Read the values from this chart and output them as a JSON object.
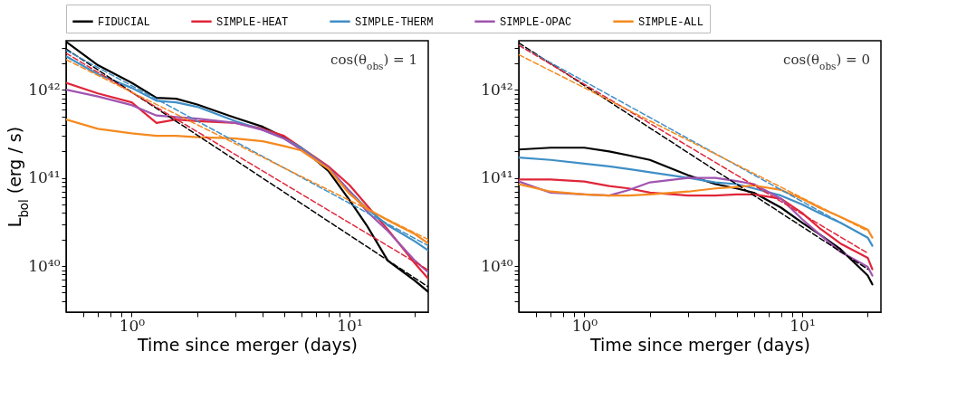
{
  "chart_data": [
    {
      "type": "line",
      "xlabel": "Time since merger (days)",
      "ylabel": "L$_{bol}$ (erg / s)",
      "annotations": [
        "cos(θ$_{obs}$) = 1"
      ],
      "log": "xy",
      "legend": "top",
      "grid": false,
      "xlim": [
        0.5,
        23
      ],
      "ylim": [
        3e+39,
        3.6e+42
      ],
      "xticks": [
        {
          "value": 0.6,
          "label": null
        },
        {
          "value": 0.7,
          "label": null
        },
        {
          "value": 0.8,
          "label": null
        },
        {
          "value": 0.9,
          "label": null
        },
        {
          "value": 1,
          "label": "10⁰"
        },
        {
          "value": 2,
          "label": null
        },
        {
          "value": 3,
          "label": null
        },
        {
          "value": 4,
          "label": null
        },
        {
          "value": 5,
          "label": null
        },
        {
          "value": 6,
          "label": null
        },
        {
          "value": 7,
          "label": null
        },
        {
          "value": 8,
          "label": null
        },
        {
          "value": 9,
          "label": null
        },
        {
          "value": 10,
          "label": "10¹"
        },
        {
          "value": 20,
          "label": null
        }
      ],
      "yticks": [
        {
          "value": 4e+39,
          "label": null
        },
        {
          "value": 5e+39,
          "label": null
        },
        {
          "value": 6e+39,
          "label": null
        },
        {
          "value": 7e+39,
          "label": null
        },
        {
          "value": 8e+39,
          "label": null
        },
        {
          "value": 9e+39,
          "label": null
        },
        {
          "value": 1e+40,
          "label": "10⁴⁰"
        },
        {
          "value": 2e+40,
          "label": null
        },
        {
          "value": 3e+40,
          "label": null
        },
        {
          "value": 4e+40,
          "label": null
        },
        {
          "value": 5e+40,
          "label": null
        },
        {
          "value": 6e+40,
          "label": null
        },
        {
          "value": 7e+40,
          "label": null
        },
        {
          "value": 8e+40,
          "label": null
        },
        {
          "value": 9e+40,
          "label": null
        },
        {
          "value": 1e+41,
          "label": "10⁴¹"
        },
        {
          "value": 2e+41,
          "label": null
        },
        {
          "value": 3e+41,
          "label": null
        },
        {
          "value": 4e+41,
          "label": null
        },
        {
          "value": 5e+41,
          "label": null
        },
        {
          "value": 6e+41,
          "label": null
        },
        {
          "value": 7e+41,
          "label": null
        },
        {
          "value": 8e+41,
          "label": null
        },
        {
          "value": 9e+41,
          "label": null
        },
        {
          "value": 1e+42,
          "label": "10⁴²"
        },
        {
          "value": 2e+42,
          "label": null
        },
        {
          "value": 3e+42,
          "label": null
        }
      ],
      "x": [
        0.5,
        0.7,
        1,
        1.3,
        1.6,
        2,
        3,
        4,
        5,
        6,
        8,
        10,
        12,
        15,
        20,
        23
      ],
      "series": [
        {
          "name": "FIDUCIAL",
          "color": "#000000",
          "line_style": "solid",
          "values": [
            3.5e+42,
            1.9e+42,
            1.2e+42,
            8.1e+41,
            7.9e+41,
            6.8e+41,
            4.8e+41,
            3.8e+41,
            2.9e+41,
            2.2e+41,
            1.2e+41,
            5.6e+40,
            2.9e+40,
            1.15e+40,
            6.8e+39,
            5.1e+39
          ]
        },
        {
          "name": "SIMPLE-HEAT",
          "color": "#e0263a",
          "line_style": "solid",
          "values": [
            1.2e+42,
            9.1e+41,
            7.2e+41,
            4.2e+41,
            4.6e+41,
            4.4e+41,
            4.2e+41,
            3.6e+41,
            3e+41,
            2.2e+41,
            1.35e+41,
            8.3e+40,
            4.9e+40,
            2.6e+40,
            1.07e+40,
            7.2e+39
          ]
        },
        {
          "name": "SIMPLE-THERM",
          "color": "#3f8fc6",
          "line_style": "solid",
          "values": [
            2.4e+42,
            1.5e+42,
            1.05e+42,
            7.5e+41,
            7.2e+41,
            6.4e+41,
            4.4e+41,
            3.5e+41,
            2.8e+41,
            2.2e+41,
            1.3e+41,
            7.1e+40,
            4.5e+40,
            2.9e+40,
            1.9e+40,
            1.5e+40
          ]
        },
        {
          "name": "SIMPLE-OPAC",
          "color": "#a054b0",
          "line_style": "solid",
          "values": [
            1e+42,
            8.4e+41,
            6.7e+41,
            5.1e+41,
            4.9e+41,
            4.7e+41,
            4.2e+41,
            3.5e+41,
            2.8e+41,
            2.1e+41,
            1.3e+41,
            7.1e+40,
            4.2e+40,
            2.5e+40,
            1.15e+40,
            8.5e+39
          ]
        },
        {
          "name": "SIMPLE-ALL",
          "color": "#f58a1f",
          "line_style": "solid",
          "values": [
            4.6e+41,
            3.6e+41,
            3.2e+41,
            3e+41,
            3e+41,
            2.9e+41,
            2.8e+41,
            2.6e+41,
            2.3e+41,
            2.05e+41,
            1.27e+41,
            6.6e+40,
            4.5e+40,
            3.3e+40,
            2.3e+40,
            1.8e+40
          ]
        },
        {
          "color": "#000000",
          "line_style": "dashed",
          "x": [
            0.5,
            23
          ],
          "values": [
            2.9e+42,
            5.8e+39
          ]
        },
        {
          "color": "#3f8fc6",
          "line_style": "dashed",
          "x": [
            0.5,
            23
          ],
          "values": [
            2.8e+42,
            1.7e+40
          ]
        },
        {
          "color": "#e0263a",
          "line_style": "dashed",
          "x": [
            0.5,
            23
          ],
          "values": [
            2.6e+42,
            9e+39
          ]
        },
        {
          "color": "#f58a1f",
          "line_style": "dashed",
          "x": [
            0.5,
            23
          ],
          "values": [
            2.2e+42,
            2e+40
          ]
        }
      ]
    },
    {
      "type": "line",
      "xlabel": "Time since merger (days)",
      "annotations": [
        "cos(θ$_{obs}$) = 0"
      ],
      "log": "xy",
      "legend": "top",
      "grid": false,
      "xlim": [
        0.5,
        23
      ],
      "ylim": [
        3e+39,
        3.6e+42
      ],
      "xticks": [
        {
          "value": 0.6,
          "label": null
        },
        {
          "value": 0.7,
          "label": null
        },
        {
          "value": 0.8,
          "label": null
        },
        {
          "value": 0.9,
          "label": null
        },
        {
          "value": 1,
          "label": "10⁰"
        },
        {
          "value": 2,
          "label": null
        },
        {
          "value": 3,
          "label": null
        },
        {
          "value": 4,
          "label": null
        },
        {
          "value": 5,
          "label": null
        },
        {
          "value": 6,
          "label": null
        },
        {
          "value": 7,
          "label": null
        },
        {
          "value": 8,
          "label": null
        },
        {
          "value": 9,
          "label": null
        },
        {
          "value": 10,
          "label": "10¹"
        },
        {
          "value": 20,
          "label": null
        }
      ],
      "yticks": [
        {
          "value": 4e+39,
          "label": null
        },
        {
          "value": 5e+39,
          "label": null
        },
        {
          "value": 6e+39,
          "label": null
        },
        {
          "value": 7e+39,
          "label": null
        },
        {
          "value": 8e+39,
          "label": null
        },
        {
          "value": 9e+39,
          "label": null
        },
        {
          "value": 1e+40,
          "label": "10⁴⁰"
        },
        {
          "value": 2e+40,
          "label": null
        },
        {
          "value": 3e+40,
          "label": null
        },
        {
          "value": 4e+40,
          "label": null
        },
        {
          "value": 5e+40,
          "label": null
        },
        {
          "value": 6e+40,
          "label": null
        },
        {
          "value": 7e+40,
          "label": null
        },
        {
          "value": 8e+40,
          "label": null
        },
        {
          "value": 9e+40,
          "label": null
        },
        {
          "value": 1e+41,
          "label": "10⁴¹"
        },
        {
          "value": 2e+41,
          "label": null
        },
        {
          "value": 3e+41,
          "label": null
        },
        {
          "value": 4e+41,
          "label": null
        },
        {
          "value": 5e+41,
          "label": null
        },
        {
          "value": 6e+41,
          "label": null
        },
        {
          "value": 7e+41,
          "label": null
        },
        {
          "value": 8e+41,
          "label": null
        },
        {
          "value": 9e+41,
          "label": null
        },
        {
          "value": 1e+42,
          "label": "10⁴²"
        },
        {
          "value": 2e+42,
          "label": null
        },
        {
          "value": 3e+42,
          "label": null
        }
      ],
      "x": [
        0.5,
        0.7,
        1,
        1.3,
        1.6,
        2,
        3,
        4,
        5,
        6,
        8,
        10,
        12,
        15,
        20,
        21
      ],
      "series": [
        {
          "name": "FIDUCIAL",
          "color": "#000000",
          "line_style": "solid",
          "values": [
            2.1e+41,
            2.2e+41,
            2.2e+41,
            2e+41,
            1.8e+41,
            1.6e+41,
            1.07e+41,
            8.5e+40,
            7.6e+40,
            6.8e+40,
            4.6e+40,
            3.1e+40,
            2.3e+40,
            1.55e+40,
            7.8e+39,
            6.2e+39
          ]
        },
        {
          "name": "SIMPLE-HEAT",
          "color": "#e0263a",
          "line_style": "solid",
          "values": [
            9.6e+40,
            9.6e+40,
            9.1e+40,
            8.1e+40,
            7.6e+40,
            6.8e+40,
            6.3e+40,
            6.3e+40,
            6.5e+40,
            6.5e+40,
            5.8e+40,
            4e+40,
            2.7e+40,
            1.8e+40,
            1.24e+40,
            9.2e+39
          ]
        },
        {
          "name": "SIMPLE-THERM",
          "color": "#3f8fc6",
          "line_style": "solid",
          "values": [
            1.7e+41,
            1.6e+41,
            1.45e+41,
            1.35e+41,
            1.26e+41,
            1.16e+41,
            1e+41,
            8.9e+40,
            8.5e+40,
            7.6e+40,
            6.3e+40,
            5e+40,
            4e+40,
            3.1e+40,
            2.1e+40,
            1.7e+40
          ]
        },
        {
          "name": "SIMPLE-OPAC",
          "color": "#a054b0",
          "line_style": "solid",
          "values": [
            9.1e+40,
            6.8e+40,
            6.5e+40,
            6.3e+40,
            7.3e+40,
            8.9e+40,
            1e+41,
            1e+41,
            9.2e+40,
            8.5e+40,
            5.8e+40,
            3.4e+40,
            2.3e+40,
            1.45e+40,
            9.8e+39,
            7.8e+39
          ]
        },
        {
          "name": "SIMPLE-ALL",
          "color": "#f58a1f",
          "line_style": "solid",
          "values": [
            8.5e+40,
            7e+40,
            6.5e+40,
            6.3e+40,
            6.3e+40,
            6.5e+40,
            7e+40,
            7.6e+40,
            7.9e+40,
            8.2e+40,
            7.3e+40,
            5.8e+40,
            4.6e+40,
            3.6e+40,
            2.6e+40,
            2.1e+40
          ]
        },
        {
          "color": "#000000",
          "line_style": "dashed",
          "x": [
            0.5,
            20
          ],
          "values": [
            3.4e+42,
            9.2e+39
          ]
        },
        {
          "color": "#3f8fc6",
          "line_style": "dashed",
          "x": [
            0.5,
            20
          ],
          "values": [
            3.2e+42,
            2.1e+40
          ]
        },
        {
          "color": "#e0263a",
          "line_style": "dashed",
          "x": [
            0.5,
            20
          ],
          "values": [
            3.2e+42,
            1.4e+40
          ]
        },
        {
          "color": "#f58a1f",
          "line_style": "dashed",
          "x": [
            0.5,
            20
          ],
          "values": [
            2.5e+42,
            2.5e+40
          ]
        }
      ]
    }
  ]
}
